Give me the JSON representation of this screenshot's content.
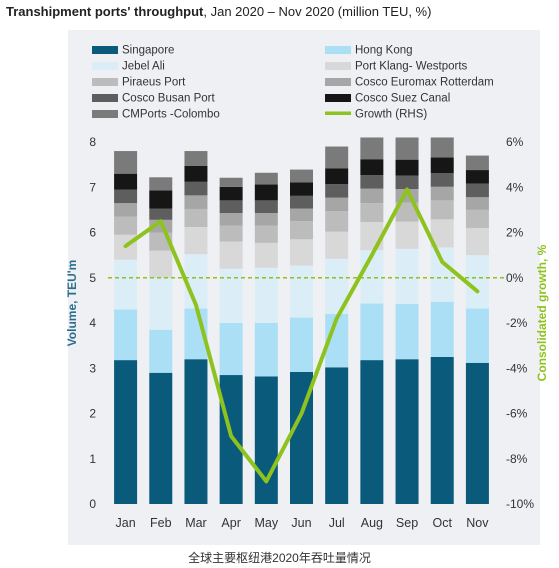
{
  "title": {
    "bold": "Transhipment ports' throughput",
    "rest": ", Jan 2020 – Nov 2020 (million TEU, %)"
  },
  "caption": "全球主要枢纽港2020年吞吐量情况",
  "colors": {
    "Singapore": "#0a5a7c",
    "Hong Kong": "#abdff5",
    "Jebel Ali": "#dbeef7",
    "Port Klang- Westports": "#d8d8d8",
    "Piraeus Port": "#bcbcbc",
    "Cosco Euromax Rotterdam": "#a6a6a6",
    "Cosco Busan Port": "#5e5e5e",
    "Cosco Suez Canal": "#161616",
    "CMPorts -Colombo": "#7a7a7a",
    "Growth (RHS)": "#8ec21f",
    "axis_left": "#2b6e8c",
    "axis_right": "#8ec21f"
  },
  "chart_data": {
    "type": "bar",
    "stacked": true,
    "categories": [
      "Jan",
      "Feb",
      "Mar",
      "Apr",
      "May",
      "Jun",
      "Jul",
      "Aug",
      "Sep",
      "Oct",
      "Nov"
    ],
    "ylabel": "Volume, TEU'm",
    "ylim": [
      0,
      8
    ],
    "yticks": [
      "0",
      "1",
      "2",
      "3",
      "4",
      "5",
      "6",
      "7",
      "8"
    ],
    "y2label": "Consolidated growth, %",
    "y2lim": [
      -10,
      6
    ],
    "y2ticks": [
      "-10%",
      "-8%",
      "-6%",
      "-4%",
      "-2%",
      "0%",
      "2%",
      "4%",
      "6%"
    ],
    "legend_position": "top",
    "series": [
      {
        "name": "Singapore",
        "values": [
          3.18,
          2.9,
          3.2,
          2.85,
          2.82,
          2.92,
          3.02,
          3.18,
          3.2,
          3.25,
          3.12
        ]
      },
      {
        "name": "Hong Kong",
        "values": [
          1.12,
          0.95,
          1.12,
          1.15,
          1.18,
          1.2,
          1.18,
          1.25,
          1.22,
          1.22,
          1.2
        ]
      },
      {
        "name": "Jebel Ali",
        "values": [
          1.1,
          1.15,
          1.2,
          1.2,
          1.22,
          1.15,
          1.22,
          1.18,
          1.22,
          1.2,
          1.18
        ]
      },
      {
        "name": "Port Klang- Westports",
        "values": [
          0.55,
          0.6,
          0.6,
          0.6,
          0.55,
          0.58,
          0.6,
          0.62,
          0.6,
          0.62,
          0.6
        ]
      },
      {
        "name": "Piraeus Port",
        "values": [
          0.4,
          0.4,
          0.4,
          0.35,
          0.38,
          0.4,
          0.45,
          0.42,
          0.42,
          0.42,
          0.4
        ]
      },
      {
        "name": "Cosco Euromax Rotterdam",
        "values": [
          0.3,
          0.28,
          0.3,
          0.28,
          0.28,
          0.28,
          0.3,
          0.32,
          0.3,
          0.3,
          0.28
        ]
      },
      {
        "name": "Cosco Busan Port",
        "values": [
          0.3,
          0.25,
          0.3,
          0.28,
          0.28,
          0.28,
          0.3,
          0.3,
          0.3,
          0.3,
          0.3
        ]
      },
      {
        "name": "Cosco Suez Canal",
        "values": [
          0.35,
          0.4,
          0.35,
          0.3,
          0.35,
          0.3,
          0.35,
          0.35,
          0.35,
          0.35,
          0.3
        ]
      },
      {
        "name": "CMPorts -Colombo",
        "values": [
          0.5,
          0.29,
          0.33,
          0.2,
          0.26,
          0.28,
          0.48,
          0.48,
          0.49,
          0.44,
          0.32
        ]
      }
    ],
    "line_series": {
      "name": "Growth (RHS)",
      "axis": "right",
      "values": [
        1.4,
        2.5,
        -1.2,
        -7.0,
        -9.0,
        -6.0,
        -1.8,
        1.0,
        3.9,
        0.7,
        -0.6
      ]
    },
    "reference_line": {
      "axis": "right",
      "value": 0,
      "style": "dashed"
    }
  },
  "legend": [
    {
      "name": "Singapore",
      "kind": "box"
    },
    {
      "name": "Hong Kong",
      "kind": "box"
    },
    {
      "name": "Jebel Ali",
      "kind": "box"
    },
    {
      "name": "Port Klang- Westports",
      "kind": "box"
    },
    {
      "name": "Piraeus Port",
      "kind": "box"
    },
    {
      "name": "Cosco Euromax Rotterdam",
      "kind": "box"
    },
    {
      "name": "Cosco Busan Port",
      "kind": "box"
    },
    {
      "name": "Cosco Suez Canal",
      "kind": "box"
    },
    {
      "name": "CMPorts -Colombo",
      "kind": "box"
    },
    {
      "name": "Growth (RHS)",
      "kind": "line"
    }
  ]
}
